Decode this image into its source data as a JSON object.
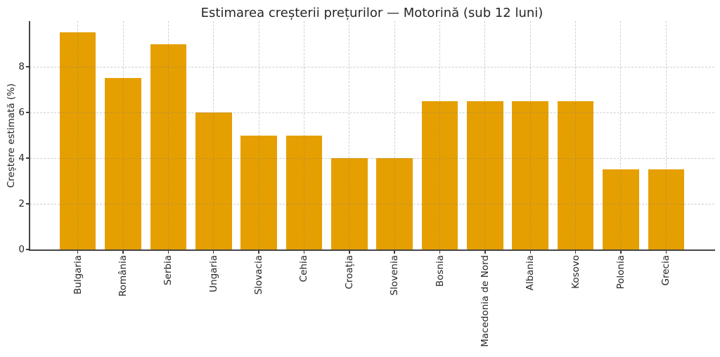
{
  "chart_data": {
    "type": "bar",
    "title": "Estimarea creșterii prețurilor — Motorină (sub 12 luni)",
    "xlabel": "",
    "ylabel": "Creștere estimată (%)",
    "categories": [
      "Bulgaria",
      "România",
      "Serbia",
      "Ungaria",
      "Slovacia",
      "Cehia",
      "Croația",
      "Slovenia",
      "Bosnia",
      "Macedonia de Nord",
      "Albania",
      "Kosovo",
      "Polonia",
      "Grecia"
    ],
    "values": [
      9.5,
      7.5,
      9,
      6,
      5,
      5,
      4,
      4,
      6.5,
      6.5,
      6.5,
      6.5,
      3.5,
      3.5
    ],
    "ylim": [
      0,
      10
    ],
    "yticks": [
      0,
      2,
      4,
      6,
      8
    ],
    "bar_color": "#E69F00",
    "grid": "dashed, drawn over bars",
    "legend": "none",
    "x_tick_rotation_deg": 90
  },
  "colors": {
    "bar": "#E69F00",
    "axis": "#454545",
    "grid": "#d3d3d3",
    "text": "#262626",
    "background": "#ffffff"
  }
}
